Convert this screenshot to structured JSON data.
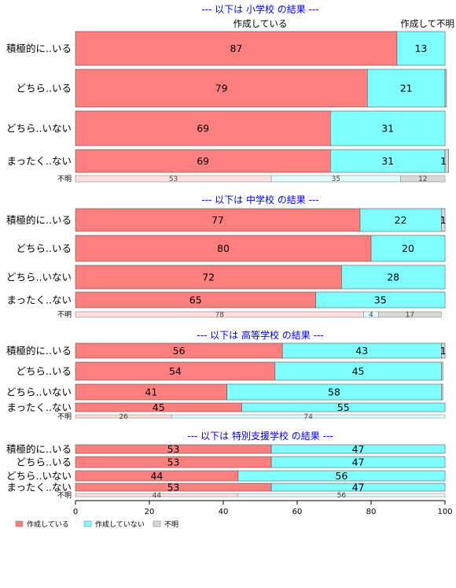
{
  "chart_data": {
    "type": "bar",
    "stacked": true,
    "orientation": "horizontal",
    "xlim": [
      0,
      100
    ],
    "xticks": [
      "0",
      "20",
      "40",
      "60",
      "80",
      "100"
    ],
    "column_headers": [
      "作成している",
      "作成して不明"
    ],
    "legend_position": "bottom-left",
    "legend": [
      {
        "label": "作成している",
        "color": "#ff7f7f"
      },
      {
        "label": "作成していない",
        "color": "#7fffff"
      },
      {
        "label": "不明",
        "color": "#d9d9d9"
      }
    ],
    "colors": {
      "series1": "#ff7f7f",
      "series2": "#7fffff",
      "series3": "#d9d9d9",
      "title": "#0000ee"
    },
    "panels": [
      {
        "title": "--- 以下は 小学校 の結果 ---",
        "categories": [
          "積極的に..いる",
          "どちら..いる",
          "どちら..いない",
          "まったく..ない"
        ],
        "series": [
          {
            "name": "作成している",
            "values": [
              87,
              79,
              69,
              69
            ]
          },
          {
            "name": "作成していない",
            "values": [
              13,
              21,
              31,
              31
            ]
          },
          {
            "name": "不明",
            "values": [
              0,
              0.4,
              0,
              1
            ]
          }
        ],
        "labels": [
          [
            "87",
            "13",
            ""
          ],
          [
            "79",
            "21",
            ""
          ],
          [
            "69",
            "31",
            ""
          ],
          [
            "69",
            "31",
            "1"
          ]
        ],
        "na_row": {
          "label": "不明",
          "values": [
            53,
            35,
            12
          ],
          "labels": [
            "53",
            "35",
            "12"
          ]
        }
      },
      {
        "title": "--- 以下は 中学校 の結果 ---",
        "categories": [
          "積極的に..いる",
          "どちら..いる",
          "どちら..いない",
          "まったく..ない"
        ],
        "series": [
          {
            "name": "作成している",
            "values": [
              77,
              80,
              72,
              65
            ]
          },
          {
            "name": "作成していない",
            "values": [
              22,
              20,
              28,
              35
            ]
          },
          {
            "name": "不明",
            "values": [
              1,
              0,
              0,
              0
            ]
          }
        ],
        "labels": [
          [
            "77",
            "22",
            "1"
          ],
          [
            "80",
            "20",
            ""
          ],
          [
            "72",
            "28",
            ""
          ],
          [
            "65",
            "35",
            ""
          ]
        ],
        "na_row": {
          "label": "不明",
          "values": [
            78,
            4,
            17
          ],
          "labels": [
            "78",
            "4",
            "17"
          ]
        }
      },
      {
        "title": "--- 以下は 高等学校 の結果 ---",
        "categories": [
          "積極的に..いる",
          "どちら..いる",
          "どちら..いない",
          "まったく..ない"
        ],
        "series": [
          {
            "name": "作成している",
            "values": [
              56,
              54,
              41,
              45
            ]
          },
          {
            "name": "作成していない",
            "values": [
              43,
              45,
              58,
              55
            ]
          },
          {
            "name": "不明",
            "values": [
              1,
              0.4,
              0.4,
              0
            ]
          }
        ],
        "labels": [
          [
            "56",
            "43",
            "1"
          ],
          [
            "54",
            "45",
            ""
          ],
          [
            "41",
            "58",
            ""
          ],
          [
            "45",
            "55",
            ""
          ]
        ],
        "na_row": {
          "label": "不明",
          "values": [
            26,
            74,
            0
          ],
          "labels": [
            "26",
            "74",
            ""
          ]
        }
      },
      {
        "title": "--- 以下は 特別支援学校 の結果 ---",
        "categories": [
          "積極的に..いる",
          "どちら..いる",
          "どちら..いない",
          "まったく..ない"
        ],
        "series": [
          {
            "name": "作成している",
            "values": [
              53,
              53,
              44,
              53
            ]
          },
          {
            "name": "作成していない",
            "values": [
              47,
              47,
              56,
              47
            ]
          },
          {
            "name": "不明",
            "values": [
              0,
              0,
              0,
              0
            ]
          }
        ],
        "labels": [
          [
            "53",
            "47",
            ""
          ],
          [
            "53",
            "47",
            ""
          ],
          [
            "44",
            "56",
            ""
          ],
          [
            "53",
            "47",
            ""
          ]
        ],
        "na_row": {
          "label": "不明",
          "values": [
            44,
            56,
            0
          ],
          "labels": [
            "44",
            "56",
            ""
          ]
        }
      }
    ]
  }
}
